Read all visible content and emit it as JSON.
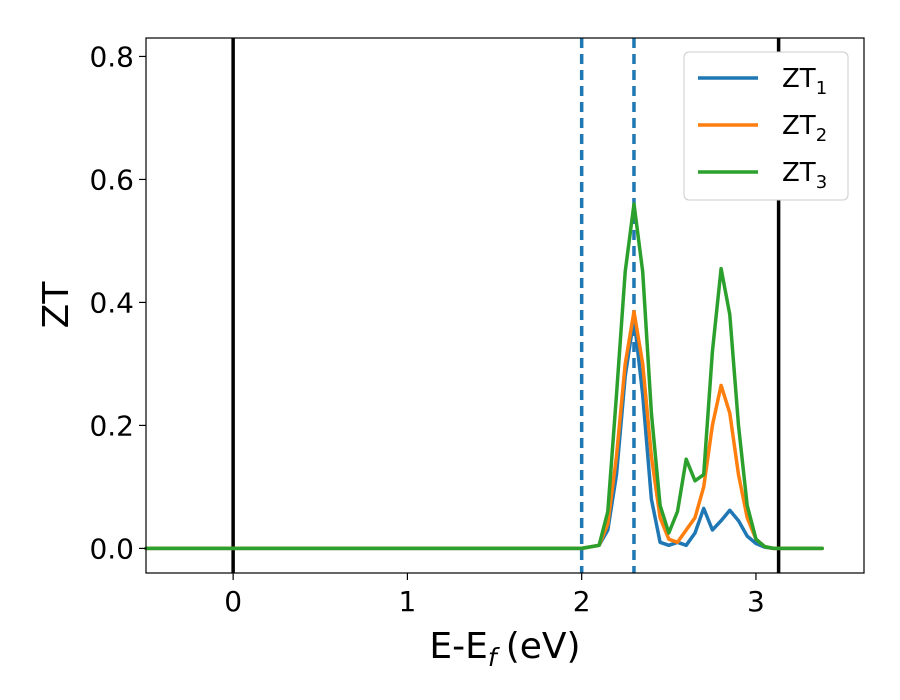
{
  "chart_data": {
    "type": "line",
    "xlabel": "E-E",
    "xlabel_subscript": "f",
    "xlabel_unit": "(eV)",
    "ylabel": "ZT",
    "xlim": [
      -0.5,
      3.62
    ],
    "ylim": [
      -0.04,
      0.83
    ],
    "xticks": [
      0,
      1,
      2,
      3
    ],
    "yticks": [
      0.0,
      0.2,
      0.4,
      0.6,
      0.8
    ],
    "xtick_labels": [
      "0",
      "1",
      "2",
      "3"
    ],
    "ytick_labels": [
      "0.0",
      "0.2",
      "0.4",
      "0.6",
      "0.8"
    ],
    "grid": false,
    "legend_position": "top-right",
    "vertical_lines": [
      {
        "x": 0.0,
        "style": "solid",
        "color": "#000000"
      },
      {
        "x": 3.13,
        "style": "solid",
        "color": "#000000"
      },
      {
        "x": 2.0,
        "style": "dashed",
        "color": "#1f77b4"
      },
      {
        "x": 2.3,
        "style": "dashed",
        "color": "#1f77b4"
      }
    ],
    "series": [
      {
        "name": "ZT",
        "subscript": "1",
        "color": "#1f77b4",
        "x": [
          -0.5,
          2.0,
          2.1,
          2.15,
          2.2,
          2.25,
          2.3,
          2.35,
          2.4,
          2.45,
          2.5,
          2.55,
          2.6,
          2.65,
          2.7,
          2.75,
          2.8,
          2.85,
          2.9,
          2.95,
          3.0,
          3.05,
          3.1,
          3.2,
          3.38
        ],
        "y": [
          0.0,
          0.0,
          0.005,
          0.03,
          0.12,
          0.28,
          0.375,
          0.25,
          0.08,
          0.01,
          0.005,
          0.01,
          0.005,
          0.025,
          0.065,
          0.03,
          0.045,
          0.062,
          0.045,
          0.02,
          0.008,
          0.002,
          0.0,
          0.0,
          0.0
        ]
      },
      {
        "name": "ZT",
        "subscript": "2",
        "color": "#ff7f0e",
        "x": [
          -0.5,
          2.0,
          2.1,
          2.15,
          2.2,
          2.25,
          2.3,
          2.35,
          2.4,
          2.45,
          2.5,
          2.55,
          2.6,
          2.65,
          2.7,
          2.75,
          2.8,
          2.85,
          2.9,
          2.95,
          3.0,
          3.05,
          3.1,
          3.2,
          3.38
        ],
        "y": [
          0.0,
          0.0,
          0.005,
          0.04,
          0.15,
          0.3,
          0.385,
          0.3,
          0.15,
          0.05,
          0.015,
          0.01,
          0.03,
          0.05,
          0.1,
          0.2,
          0.265,
          0.22,
          0.12,
          0.05,
          0.015,
          0.003,
          0.0,
          0.0,
          0.0
        ]
      },
      {
        "name": "ZT",
        "subscript": "3",
        "color": "#2ca02c",
        "x": [
          -0.5,
          2.0,
          2.1,
          2.15,
          2.2,
          2.25,
          2.3,
          2.35,
          2.4,
          2.45,
          2.5,
          2.55,
          2.6,
          2.65,
          2.7,
          2.75,
          2.8,
          2.85,
          2.9,
          2.95,
          3.0,
          3.05,
          3.1,
          3.2,
          3.38
        ],
        "y": [
          0.0,
          0.0,
          0.005,
          0.06,
          0.25,
          0.45,
          0.56,
          0.45,
          0.22,
          0.07,
          0.025,
          0.06,
          0.145,
          0.11,
          0.12,
          0.32,
          0.455,
          0.38,
          0.2,
          0.07,
          0.015,
          0.003,
          0.0,
          0.0,
          0.0
        ]
      }
    ]
  }
}
